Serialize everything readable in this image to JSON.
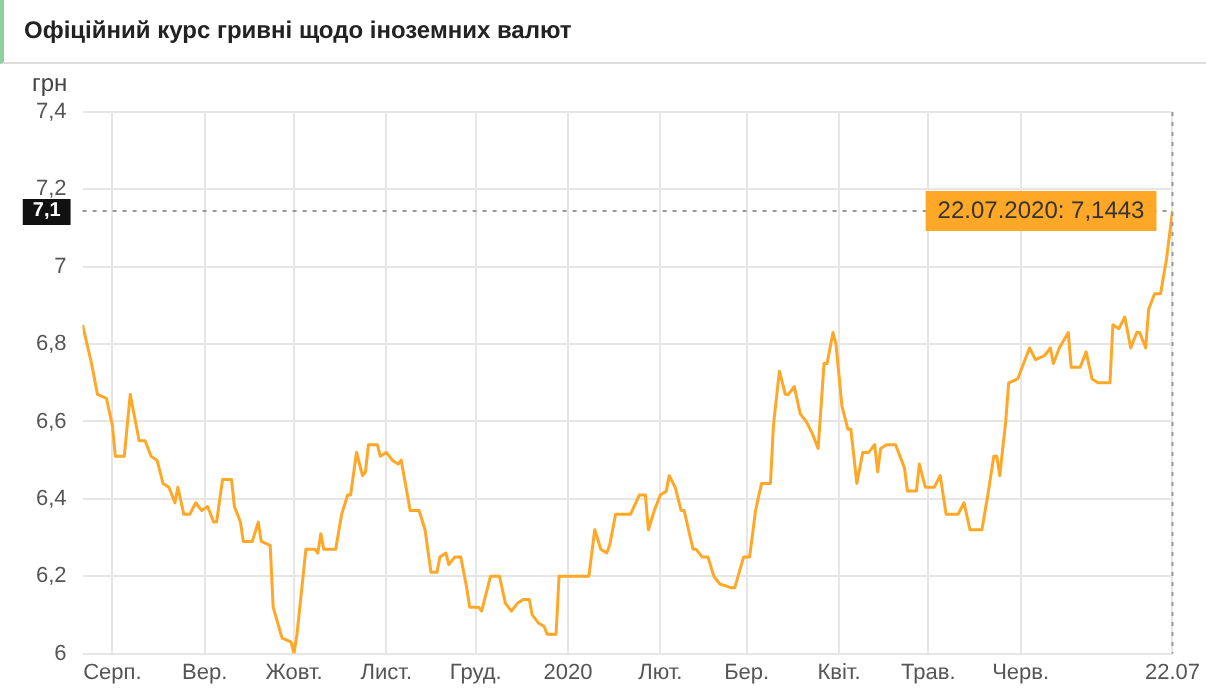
{
  "chart_data": {
    "type": "line",
    "title": "Офіційний курс гривні щодо іноземних валют",
    "ylabel": "грн",
    "x": [
      "2019-07-22",
      "2019-07-25",
      "2019-07-27",
      "2019-07-30",
      "2019-08-01",
      "2019-08-02",
      "2019-08-05",
      "2019-08-07",
      "2019-08-10",
      "2019-08-12",
      "2019-08-14",
      "2019-08-16",
      "2019-08-18",
      "2019-08-20",
      "2019-08-22",
      "2019-08-23",
      "2019-08-25",
      "2019-08-27",
      "2019-08-29",
      "2019-08-31",
      "2019-09-02",
      "2019-09-04",
      "2019-09-05",
      "2019-09-07",
      "2019-09-10",
      "2019-09-11",
      "2019-09-13",
      "2019-09-14",
      "2019-09-17",
      "2019-09-19",
      "2019-09-20",
      "2019-09-23",
      "2019-09-24",
      "2019-09-27",
      "2019-09-30",
      "2019-10-01",
      "2019-10-02",
      "2019-10-05",
      "2019-10-08",
      "2019-10-09",
      "2019-10-10",
      "2019-10-11",
      "2019-10-15",
      "2019-10-17",
      "2019-10-19",
      "2019-10-20",
      "2019-10-22",
      "2019-10-24",
      "2019-10-25",
      "2019-10-26",
      "2019-10-29",
      "2019-10-30",
      "2019-11-01",
      "2019-11-03",
      "2019-11-05",
      "2019-11-06",
      "2019-11-09",
      "2019-11-12",
      "2019-11-14",
      "2019-11-16",
      "2019-11-18",
      "2019-11-19",
      "2019-11-21",
      "2019-11-22",
      "2019-11-24",
      "2019-11-26",
      "2019-11-28",
      "2019-11-29",
      "2019-12-02",
      "2019-12-03",
      "2019-12-06",
      "2019-12-09",
      "2019-12-11",
      "2019-12-13",
      "2019-12-15",
      "2019-12-17",
      "2019-12-19",
      "2019-12-20",
      "2019-12-22",
      "2019-12-24",
      "2019-12-25",
      "2019-12-28",
      "2019-12-29",
      "2020-01-08",
      "2020-01-10",
      "2020-01-12",
      "2020-01-14",
      "2020-01-15",
      "2020-01-17",
      "2020-01-22",
      "2020-01-25",
      "2020-01-27",
      "2020-01-28",
      "2020-01-30",
      "2020-02-01",
      "2020-02-03",
      "2020-02-04",
      "2020-02-06",
      "2020-02-08",
      "2020-02-09",
      "2020-02-12",
      "2020-02-13",
      "2020-02-15",
      "2020-02-17",
      "2020-02-19",
      "2020-02-21",
      "2020-02-25",
      "2020-02-26",
      "2020-02-29",
      "2020-03-02",
      "2020-03-04",
      "2020-03-06",
      "2020-03-09",
      "2020-03-10",
      "2020-03-12",
      "2020-03-14",
      "2020-03-15",
      "2020-03-17",
      "2020-03-19",
      "2020-03-21",
      "2020-03-23",
      "2020-03-25",
      "2020-03-27",
      "2020-03-28",
      "2020-03-30",
      "2020-03-31",
      "2020-04-02",
      "2020-04-04",
      "2020-04-05",
      "2020-04-07",
      "2020-04-09",
      "2020-04-11",
      "2020-04-13",
      "2020-04-14",
      "2020-04-15",
      "2020-04-17",
      "2020-04-20",
      "2020-04-23",
      "2020-04-24",
      "2020-04-27",
      "2020-04-28",
      "2020-04-30",
      "2020-05-03",
      "2020-05-05",
      "2020-05-07",
      "2020-05-11",
      "2020-05-13",
      "2020-05-15",
      "2020-05-19",
      "2020-05-21",
      "2020-05-23",
      "2020-05-24",
      "2020-05-25",
      "2020-05-27",
      "2020-05-28",
      "2020-05-31",
      "2020-06-01",
      "2020-06-04",
      "2020-06-06",
      "2020-06-09",
      "2020-06-11",
      "2020-06-12",
      "2020-06-14",
      "2020-06-17",
      "2020-06-18",
      "2020-06-21",
      "2020-06-23",
      "2020-06-25",
      "2020-06-27",
      "2020-07-01",
      "2020-07-02",
      "2020-07-04",
      "2020-07-06",
      "2020-07-08",
      "2020-07-10",
      "2020-07-11",
      "2020-07-13",
      "2020-07-14",
      "2020-07-16",
      "2020-07-18",
      "2020-07-20",
      "2020-07-22"
    ],
    "series": [
      {
        "color": "#ffa726",
        "values": [
          6.85,
          6.75,
          6.67,
          6.66,
          6.59,
          6.51,
          6.51,
          6.67,
          6.55,
          6.55,
          6.51,
          6.5,
          6.44,
          6.43,
          6.39,
          6.43,
          6.36,
          6.36,
          6.39,
          6.37,
          6.38,
          6.34,
          6.34,
          6.45,
          6.45,
          6.38,
          6.34,
          6.29,
          6.29,
          6.34,
          6.29,
          6.28,
          6.12,
          6.04,
          6.03,
          6.0,
          6.05,
          6.27,
          6.27,
          6.26,
          6.31,
          6.27,
          6.27,
          6.36,
          6.41,
          6.41,
          6.52,
          6.46,
          6.47,
          6.54,
          6.54,
          6.51,
          6.52,
          6.5,
          6.49,
          6.5,
          6.37,
          6.37,
          6.32,
          6.21,
          6.21,
          6.25,
          6.26,
          6.23,
          6.25,
          6.25,
          6.17,
          6.12,
          6.12,
          6.11,
          6.2,
          6.2,
          6.13,
          6.11,
          6.13,
          6.14,
          6.14,
          6.1,
          6.08,
          6.07,
          6.05,
          6.05,
          6.2,
          6.2,
          6.32,
          6.27,
          6.26,
          6.28,
          6.36,
          6.36,
          6.41,
          6.41,
          6.32,
          6.37,
          6.41,
          6.42,
          6.46,
          6.43,
          6.37,
          6.37,
          6.27,
          6.27,
          6.25,
          6.25,
          6.2,
          6.18,
          6.17,
          6.17,
          6.25,
          6.25,
          6.37,
          6.44,
          6.44,
          6.59,
          6.73,
          6.67,
          6.67,
          6.69,
          6.62,
          6.6,
          6.57,
          6.53,
          6.75,
          6.75,
          6.83,
          6.8,
          6.64,
          6.58,
          6.58,
          6.44,
          6.52,
          6.52,
          6.54,
          6.47,
          6.53,
          6.54,
          6.54,
          6.48,
          6.42,
          6.42,
          6.49,
          6.43,
          6.43,
          6.46,
          6.36,
          6.36,
          6.39,
          6.32,
          6.32,
          6.41,
          6.51,
          6.51,
          6.46,
          6.6,
          6.7,
          6.71,
          6.73,
          6.79,
          6.76,
          6.77,
          6.79,
          6.75,
          6.79,
          6.83,
          6.74,
          6.74,
          6.78,
          6.71,
          6.7,
          6.7,
          6.85,
          6.84,
          6.87,
          6.79,
          6.83,
          6.83,
          6.79,
          6.89,
          6.93,
          6.93,
          7.02,
          7.1443
        ]
      }
    ],
    "xlim": [
      "2019-07-22",
      "2020-07-22"
    ],
    "xticks": [
      {
        "value": "2019-08-01",
        "label": "Серп."
      },
      {
        "value": "2019-09-01",
        "label": "Вер."
      },
      {
        "value": "2019-10-01",
        "label": "Жовт."
      },
      {
        "value": "2019-11-01",
        "label": "Лист."
      },
      {
        "value": "2019-12-01",
        "label": "Груд."
      },
      {
        "value": "2020-01-01",
        "label": "2020"
      },
      {
        "value": "2020-02-01",
        "label": "Лют."
      },
      {
        "value": "2020-03-01",
        "label": "Бер."
      },
      {
        "value": "2020-04-01",
        "label": "Квіт."
      },
      {
        "value": "2020-05-01",
        "label": "Трав."
      },
      {
        "value": "2020-06-01",
        "label": "Черв."
      },
      {
        "value": "2020-07-22",
        "label": "22.07"
      }
    ],
    "ylim": [
      6,
      7.4
    ],
    "yticks": [
      6,
      {
        "value": 6.2,
        "label": "6,2"
      },
      {
        "value": 6.4,
        "label": "6,4"
      },
      {
        "value": 6.6,
        "label": "6,6"
      },
      {
        "value": 6.8,
        "label": "6,8"
      },
      7,
      {
        "value": 7.2,
        "label": "7,2"
      },
      {
        "value": 7.4,
        "label": "7,4"
      }
    ],
    "ref_lines": [
      {
        "axis": "y",
        "value": 7.1443,
        "label": "7,1",
        "line_style": "dotted"
      },
      {
        "axis": "x",
        "value": "2020-07-22",
        "line_style": "dotted"
      }
    ],
    "annotations": [
      {
        "text": "22.07.2020: 7,1443",
        "x": "2020-07-22",
        "y": 7.1443
      }
    ],
    "grid": true,
    "legend": false,
    "marker": "none",
    "line_style": "solid"
  }
}
